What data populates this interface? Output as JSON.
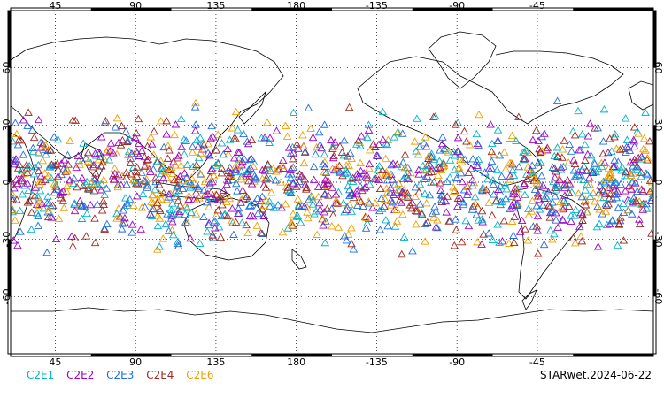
{
  "footer": {
    "legend": [
      {
        "label": "C2E1",
        "color": "#00b3c8"
      },
      {
        "label": "C2E2",
        "color": "#a000c8"
      },
      {
        "label": "C2E3",
        "color": "#1e6ee6"
      },
      {
        "label": "C2E4",
        "color": "#a0281e"
      },
      {
        "label": "C2E6",
        "color": "#f0a000"
      }
    ],
    "stamp": "STARwet.2024-06-22"
  },
  "map": {
    "projection": "cylindrical",
    "lon_range": [
      20,
      380
    ],
    "lat_range": [
      -90,
      90
    ],
    "lon_ticks": [
      "45",
      "90",
      "135",
      "180",
      "-135",
      "-90",
      "-45"
    ],
    "lat_ticks_left": [
      "60",
      "30",
      "0",
      "-30",
      "-60"
    ],
    "lat_ticks_right": [
      "60",
      "30",
      "0",
      "-30",
      "-60"
    ],
    "marker": "open-triangle",
    "coverage_lat_range": [
      -45,
      45
    ],
    "grid": "dotted"
  }
}
